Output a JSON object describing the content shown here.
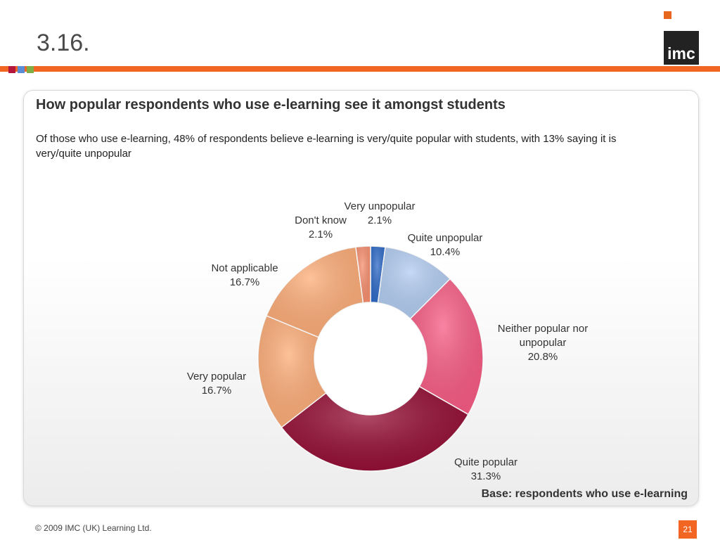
{
  "slide": {
    "title": "3.16.",
    "logo_text": "imc",
    "heading": "How popular respondents who use e-learning see it amongst students",
    "subtext": "Of those who use e-learning, 48% of respondents believe e-learning is very/quite popular with students, with 13% saying it is very/quite unpopular",
    "base_note": "Base: respondents who use e-learning",
    "footer": "© 2009 IMC (UK) Learning Ltd.",
    "page_number": "21"
  },
  "colors": {
    "accent_orange": "#f26522",
    "accent_red": "#b5163c",
    "accent_blue": "#5b8dd6",
    "accent_green": "#7fae46"
  },
  "chart_data": {
    "type": "pie",
    "variant": "donut",
    "title": "",
    "slices": [
      {
        "label": [
          "Very unpopular"
        ],
        "percent_label": "2.1%",
        "value": 2.1,
        "color": "#2f6bc7"
      },
      {
        "label": [
          "Quite unpopular"
        ],
        "percent_label": "10.4%",
        "value": 10.4,
        "color": "#b3cdf2"
      },
      {
        "label": [
          "Neither popular nor",
          "unpopular"
        ],
        "percent_label": "20.8%",
        "value": 20.8,
        "color": "#f75c84"
      },
      {
        "label": [
          "Quite popular"
        ],
        "percent_label": "31.3%",
        "value": 31.3,
        "color": "#950e35"
      },
      {
        "label": [
          "Very popular"
        ],
        "percent_label": "16.7%",
        "value": 16.7,
        "color": "#fdad78"
      },
      {
        "label": [
          "Not applicable"
        ],
        "percent_label": "16.7%",
        "value": 16.7,
        "color": "#fdad78"
      },
      {
        "label": [
          "Don't know"
        ],
        "percent_label": "2.1%",
        "value": 2.1,
        "color": "#f79070"
      }
    ]
  }
}
